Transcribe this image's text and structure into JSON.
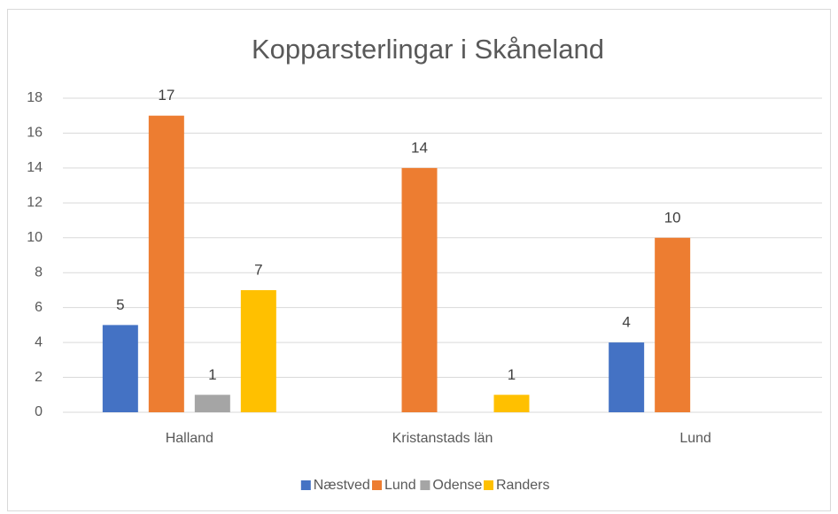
{
  "chart_data": {
    "type": "bar",
    "title": "Kopparsterlingar i Skåneland",
    "categories": [
      "Halland",
      "Kristanstads län",
      "Lund"
    ],
    "series": [
      {
        "name": "Næstved",
        "color": "#4472c4",
        "values": [
          5,
          null,
          4
        ]
      },
      {
        "name": "Lund",
        "color": "#ed7d31",
        "values": [
          17,
          14,
          10
        ]
      },
      {
        "name": "Odense",
        "color": "#a5a5a5",
        "values": [
          1,
          null,
          null
        ]
      },
      {
        "name": "Randers",
        "color": "#ffc000",
        "values": [
          7,
          1,
          null
        ]
      }
    ],
    "ylim": [
      0,
      18
    ],
    "yticks": [
      0,
      2,
      4,
      6,
      8,
      10,
      12,
      14,
      16,
      18
    ],
    "grid": true,
    "legend": "bottom"
  }
}
